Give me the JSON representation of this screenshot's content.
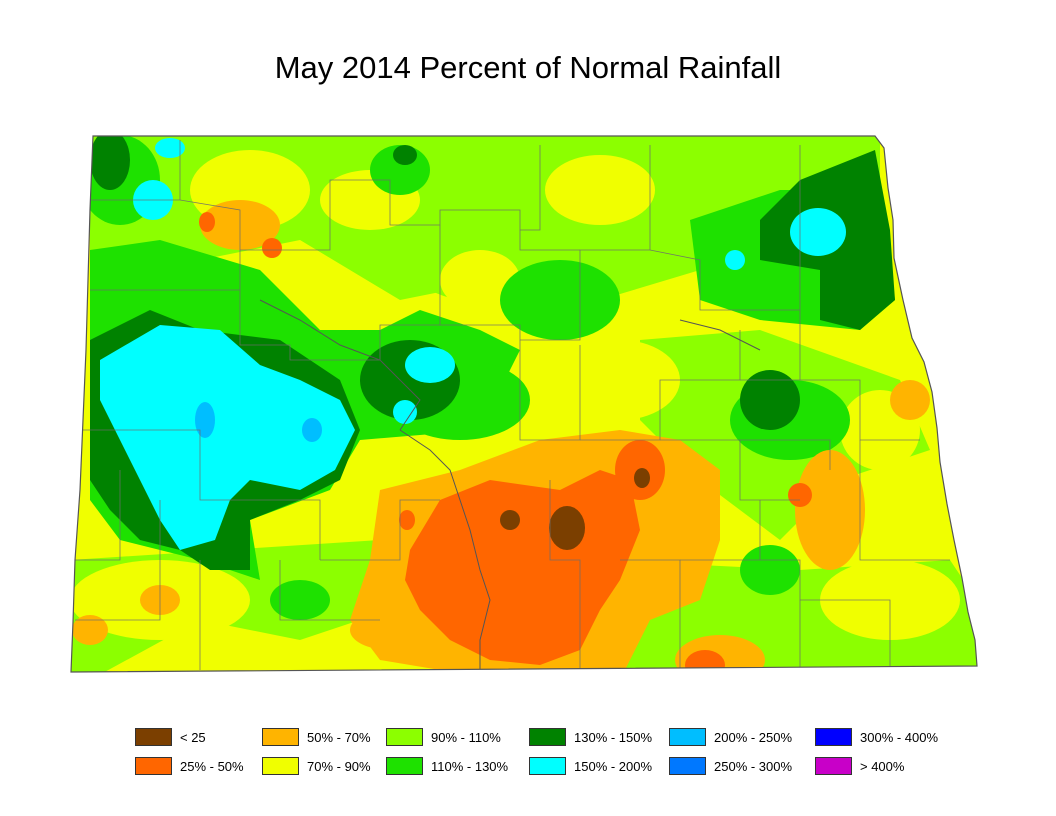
{
  "title": "May 2014 Percent of Normal Rainfall",
  "legend": [
    {
      "label": "< 25",
      "color": "#7b3f00"
    },
    {
      "label": "25% - 50%",
      "color": "#ff6600"
    },
    {
      "label": "50% - 70%",
      "color": "#ffb400"
    },
    {
      "label": "70% - 90%",
      "color": "#f0ff00"
    },
    {
      "label": "90% - 110%",
      "color": "#8cff00"
    },
    {
      "label": "110% - 130%",
      "color": "#1ee100"
    },
    {
      "label": "130% - 150%",
      "color": "#008200"
    },
    {
      "label": "150% - 200%",
      "color": "#00ffff"
    },
    {
      "label": "200% - 250%",
      "color": "#00beff"
    },
    {
      "label": "250% - 300%",
      "color": "#0078ff"
    },
    {
      "label": "300% - 400%",
      "color": "#0000ff"
    },
    {
      "label": "> 400%",
      "color": "#c800c8"
    }
  ]
}
